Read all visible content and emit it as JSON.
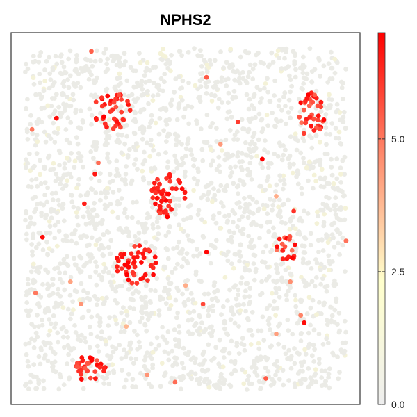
{
  "chart_data": {
    "type": "scatter",
    "title": "NPHS2",
    "xlabel": "",
    "ylabel": "",
    "grid": false,
    "legend": "right",
    "colorbar": {
      "min": 0,
      "max": 7,
      "ticks": [
        0,
        2.5,
        5
      ],
      "tick_labels": [
        "0.0",
        "2.5",
        "5.0"
      ],
      "colors": [
        "#eeeeee",
        "#ffffcc",
        "#ff8c6e",
        "#ff0000"
      ]
    },
    "background": {
      "count": 2400,
      "value": 0,
      "x_range": [
        0.04,
        0.96
      ],
      "y_range": [
        0.04,
        0.96
      ]
    },
    "clusters": [
      {
        "name": "cluster-1",
        "cx": 0.29,
        "cy": 0.79,
        "rx": 0.055,
        "ry": 0.05,
        "count": 40,
        "value_range": [
          5.5,
          7
        ]
      },
      {
        "name": "cluster-2",
        "cx": 0.45,
        "cy": 0.56,
        "rx": 0.05,
        "ry": 0.06,
        "count": 45,
        "value_range": [
          5.8,
          7
        ]
      },
      {
        "name": "cluster-3",
        "cx": 0.36,
        "cy": 0.38,
        "rx": 0.06,
        "ry": 0.055,
        "count": 45,
        "value_range": [
          5.8,
          7
        ]
      },
      {
        "name": "cluster-4",
        "cx": 0.86,
        "cy": 0.78,
        "rx": 0.04,
        "ry": 0.06,
        "count": 35,
        "value_range": [
          5.0,
          7
        ]
      },
      {
        "name": "cluster-5",
        "cx": 0.79,
        "cy": 0.42,
        "rx": 0.03,
        "ry": 0.035,
        "count": 18,
        "value_range": [
          5.0,
          7
        ]
      },
      {
        "name": "cluster-6",
        "cx": 0.22,
        "cy": 0.1,
        "rx": 0.055,
        "ry": 0.035,
        "count": 30,
        "value_range": [
          5.5,
          7
        ]
      }
    ],
    "scattered": [
      {
        "x": 0.23,
        "y": 0.95,
        "v": 5.4
      },
      {
        "x": 0.13,
        "y": 0.77,
        "v": 6.8
      },
      {
        "x": 0.06,
        "y": 0.74,
        "v": 5.0
      },
      {
        "x": 0.25,
        "y": 0.65,
        "v": 5.2
      },
      {
        "x": 0.24,
        "y": 0.62,
        "v": 6.6
      },
      {
        "x": 0.21,
        "y": 0.54,
        "v": 6.5
      },
      {
        "x": 0.09,
        "y": 0.45,
        "v": 6.8
      },
      {
        "x": 0.56,
        "y": 0.41,
        "v": 6.9
      },
      {
        "x": 0.65,
        "y": 0.76,
        "v": 6.0
      },
      {
        "x": 0.72,
        "y": 0.66,
        "v": 7.0
      },
      {
        "x": 0.56,
        "y": 0.88,
        "v": 5.5
      },
      {
        "x": 0.55,
        "y": 0.27,
        "v": 5.8
      },
      {
        "x": 0.84,
        "y": 0.22,
        "v": 6.8
      },
      {
        "x": 0.83,
        "y": 0.24,
        "v": 4.8
      },
      {
        "x": 0.17,
        "y": 0.33,
        "v": 4.2
      },
      {
        "x": 0.81,
        "y": 0.52,
        "v": 6.2
      },
      {
        "x": 0.96,
        "y": 0.44,
        "v": 5.1
      },
      {
        "x": 0.07,
        "y": 0.3,
        "v": 5.0
      },
      {
        "x": 0.6,
        "y": 0.7,
        "v": 4.4
      },
      {
        "x": 0.76,
        "y": 0.56,
        "v": 4.0
      },
      {
        "x": 0.2,
        "y": 0.27,
        "v": 4.5
      },
      {
        "x": 0.47,
        "y": 0.06,
        "v": 5.2
      },
      {
        "x": 0.73,
        "y": 0.07,
        "v": 5.5
      },
      {
        "x": 0.39,
        "y": 0.08,
        "v": 4.5
      },
      {
        "x": 0.5,
        "y": 0.32,
        "v": 4.0
      },
      {
        "x": 0.8,
        "y": 0.33,
        "v": 4.6
      },
      {
        "x": 0.76,
        "y": 0.19,
        "v": 4.3
      },
      {
        "x": 0.33,
        "y": 0.21,
        "v": 3.8
      }
    ]
  }
}
